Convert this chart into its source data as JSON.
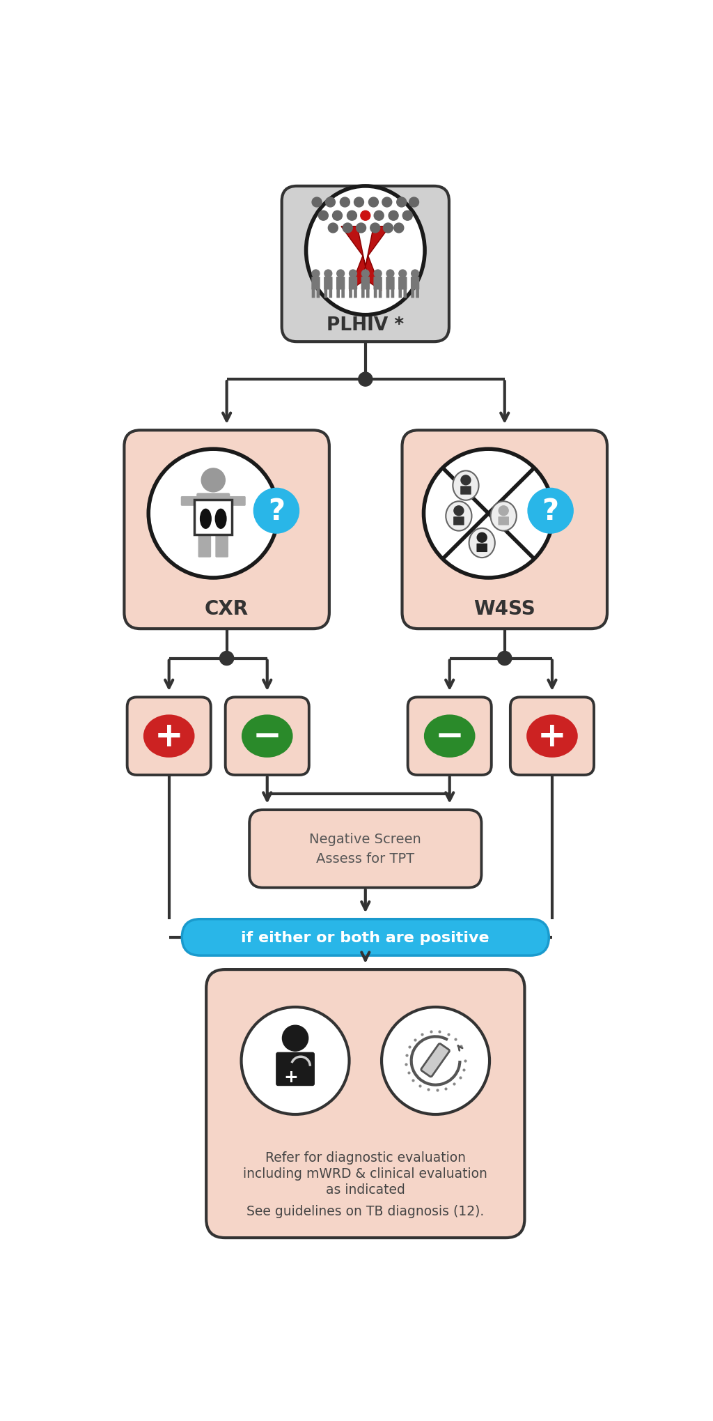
{
  "bg_color": "#ffffff",
  "salmon_box": "#f5d5c8",
  "gray_box": "#d0d0d0",
  "box_edge": "#333333",
  "arrow_color": "#333333",
  "red_color": "#cc2222",
  "green_color": "#2a8a2a",
  "blue_color": "#29b6e8",
  "white": "#ffffff",
  "dark": "#222222",
  "plhiv_label": "PLHIV *",
  "cxr_label": "CXR",
  "w4ss_label": "W4SS",
  "neg_screen_line1": "Negative Screen",
  "neg_screen_line2": "Assess for TPT",
  "blue_banner": "if either or both are positive",
  "final_line1": "Refer for diagnostic evaluation",
  "final_line2": "including mWRD & clinical evaluation",
  "final_line3": "as indicated",
  "final_line4": "See guidelines on TB diagnosis (12).",
  "figsize": [
    10.24,
    20.4
  ],
  "dpi": 100
}
